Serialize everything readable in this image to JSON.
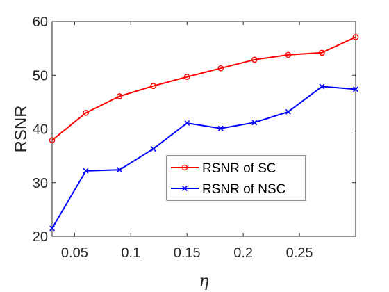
{
  "chart_data": {
    "type": "line",
    "title": "",
    "xlabel": "η",
    "ylabel": "RSNR",
    "xlim": [
      0.03,
      0.3
    ],
    "ylim": [
      20,
      60
    ],
    "xticks": [
      0.05,
      0.1,
      0.15,
      0.2,
      0.25
    ],
    "xtick_labels": [
      "0.05",
      "0.1",
      "0.15",
      "0.2",
      "0.25"
    ],
    "yticks": [
      20,
      30,
      40,
      50,
      60
    ],
    "ytick_labels": [
      "20",
      "30",
      "40",
      "50",
      "60"
    ],
    "grid": false,
    "legend_position": "lower-right",
    "x": [
      0.03,
      0.06,
      0.09,
      0.12,
      0.15,
      0.18,
      0.21,
      0.24,
      0.27,
      0.3
    ],
    "series": [
      {
        "name": "RSNR of SC",
        "color": "#ff0000",
        "marker": "circle",
        "values": [
          37.9,
          43.0,
          46.1,
          48.0,
          49.7,
          51.3,
          52.9,
          53.8,
          54.2,
          57.1
        ]
      },
      {
        "name": "RSNR of NSC",
        "color": "#0000ff",
        "marker": "x",
        "values": [
          21.5,
          32.2,
          32.4,
          36.3,
          41.1,
          40.1,
          41.2,
          43.2,
          47.9,
          47.4
        ]
      }
    ]
  }
}
